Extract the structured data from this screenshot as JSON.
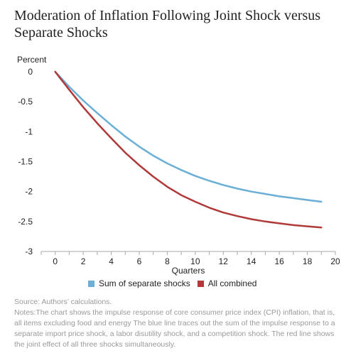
{
  "title": "Moderation of Inflation Following Joint Shock versus Separate Shocks",
  "source": "Source: Authors’ calculations.",
  "notes": "Notes:The chart shows the impulse response of core consumer price index (CPI) inflation, that is, all items excluding food and energy The blue line traces out the sum of the impulse response to a separate import price shock, a labor disutility shock, and a competition shock. The red line shows the joint effect of all three shocks simultaneously.",
  "chart_data": {
    "type": "line",
    "ylabel": "Percent",
    "xlabel": "Quarters",
    "xlim": [
      -1,
      20
    ],
    "ylim": [
      -3,
      0
    ],
    "xticks": [
      0,
      2,
      4,
      6,
      8,
      10,
      12,
      14,
      16,
      18,
      20
    ],
    "yticks": [
      0,
      -0.5,
      -1,
      -1.5,
      -2,
      -2.5,
      -3
    ],
    "grid": false,
    "legend_position": "bottom",
    "x": [
      0,
      1,
      2,
      3,
      4,
      5,
      6,
      7,
      8,
      9,
      10,
      11,
      12,
      13,
      14,
      15,
      16,
      17,
      18,
      19
    ],
    "series": [
      {
        "name": "Sum of separate shocks",
        "color": "#6baed6",
        "values": [
          0,
          -0.25,
          -0.48,
          -0.69,
          -0.89,
          -1.08,
          -1.25,
          -1.4,
          -1.53,
          -1.64,
          -1.74,
          -1.82,
          -1.89,
          -1.95,
          -2.0,
          -2.04,
          -2.08,
          -2.11,
          -2.14,
          -2.17
        ]
      },
      {
        "name": "All combined",
        "color": "#b03a3a",
        "values": [
          0,
          -0.3,
          -0.59,
          -0.86,
          -1.11,
          -1.35,
          -1.56,
          -1.75,
          -1.92,
          -2.06,
          -2.17,
          -2.27,
          -2.35,
          -2.41,
          -2.46,
          -2.5,
          -2.53,
          -2.56,
          -2.58,
          -2.6
        ]
      }
    ]
  }
}
